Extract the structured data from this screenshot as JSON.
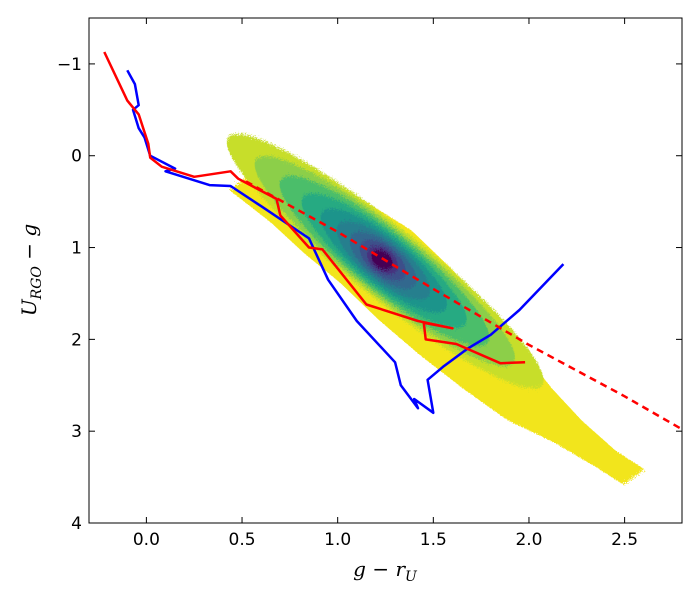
{
  "chart_data": {
    "type": "line",
    "title": "",
    "xlabel": "g − r_U",
    "ylabel": "U_RGO − g",
    "xlim": [
      -0.3,
      2.8
    ],
    "ylim": [
      4.0,
      -1.5
    ],
    "y_inverted": true,
    "grid": false,
    "legend": "none",
    "xticks": [
      "0.0",
      "0.5",
      "1.0",
      "1.5",
      "2.0",
      "2.5"
    ],
    "xtick_values": [
      0.0,
      0.5,
      1.0,
      1.5,
      2.0,
      2.5
    ],
    "yticks": [
      "−1",
      "0",
      "1",
      "2",
      "3",
      "4"
    ],
    "ytick_values": [
      -1,
      0,
      1,
      2,
      3,
      4
    ],
    "density": {
      "kind": "filled-contour",
      "levels_colors": [
        "#f2e51c",
        "#c7de2a",
        "#8ccf49",
        "#4cbe6b",
        "#25aa82",
        "#1f948b",
        "#277f8e",
        "#31688e",
        "#3c4f8a",
        "#46327e",
        "#440154"
      ],
      "ridge": [
        [
          0.55,
          0.2
        ],
        [
          0.8,
          0.5
        ],
        [
          1.0,
          0.8
        ],
        [
          1.2,
          1.1
        ],
        [
          1.4,
          1.5
        ],
        [
          1.6,
          1.9
        ],
        [
          1.8,
          2.3
        ],
        [
          2.0,
          2.7
        ],
        [
          2.2,
          3.0
        ],
        [
          2.4,
          3.3
        ],
        [
          2.55,
          3.5
        ]
      ],
      "peak": [
        1.25,
        1.15
      ]
    },
    "series": [
      {
        "color": "#0000ff",
        "style": "solid",
        "points": [
          [
            -0.1,
            -0.93
          ],
          [
            -0.06,
            -0.78
          ],
          [
            -0.04,
            -0.55
          ],
          [
            -0.07,
            -0.5
          ],
          [
            -0.04,
            -0.3
          ],
          [
            -0.01,
            -0.2
          ],
          [
            0.02,
            0.0
          ],
          [
            0.15,
            0.14
          ],
          [
            0.1,
            0.17
          ],
          [
            0.33,
            0.32
          ],
          [
            0.44,
            0.33
          ],
          [
            0.6,
            0.55
          ],
          [
            0.85,
            0.9
          ],
          [
            0.95,
            1.35
          ],
          [
            1.1,
            1.8
          ],
          [
            1.3,
            2.25
          ],
          [
            1.33,
            2.5
          ],
          [
            1.42,
            2.75
          ],
          [
            1.4,
            2.65
          ],
          [
            1.5,
            2.8
          ],
          [
            1.47,
            2.44
          ],
          [
            1.55,
            2.3
          ],
          [
            1.68,
            2.1
          ],
          [
            1.8,
            1.95
          ],
          [
            1.95,
            1.68
          ],
          [
            2.18,
            1.18
          ]
        ]
      },
      {
        "color": "#ff0000",
        "style": "solid",
        "points": [
          [
            -0.22,
            -1.13
          ],
          [
            -0.1,
            -0.6
          ],
          [
            -0.04,
            -0.45
          ],
          [
            0.01,
            -0.13
          ],
          [
            0.02,
            0.02
          ],
          [
            0.08,
            0.12
          ],
          [
            0.25,
            0.23
          ],
          [
            0.44,
            0.17
          ],
          [
            0.48,
            0.25
          ],
          [
            0.68,
            0.47
          ],
          [
            0.7,
            0.65
          ],
          [
            0.85,
            1.0
          ],
          [
            0.92,
            1.02
          ],
          [
            1.15,
            1.62
          ],
          [
            1.42,
            1.8
          ],
          [
            1.6,
            1.88
          ],
          [
            1.45,
            1.82
          ],
          [
            1.46,
            2.0
          ],
          [
            1.62,
            2.05
          ],
          [
            1.85,
            2.26
          ],
          [
            1.98,
            2.25
          ]
        ]
      },
      {
        "color": "#ff0000",
        "style": "dashed",
        "points": [
          [
            0.52,
            0.28
          ],
          [
            1.0,
            0.83
          ],
          [
            1.5,
            1.45
          ],
          [
            2.0,
            2.06
          ],
          [
            2.5,
            2.62
          ],
          [
            2.8,
            2.98
          ]
        ]
      }
    ]
  }
}
